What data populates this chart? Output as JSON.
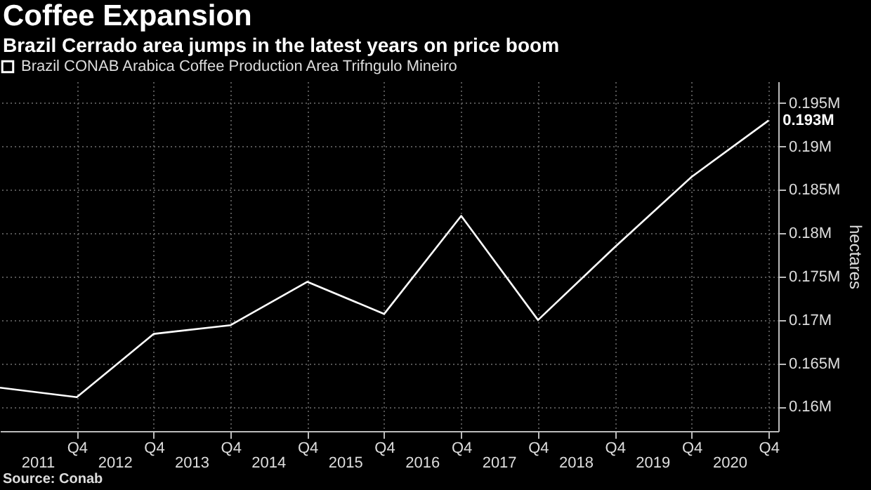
{
  "chart_data": {
    "type": "line",
    "title": "Coffee Expansion",
    "subtitle": "Brazil Cerrado area jumps in the latest years on price boom",
    "ylabel": "hectares",
    "x": [
      "2010-12-31",
      "2011-12-31",
      "2012-12-31",
      "2013-12-31",
      "2014-12-31",
      "2015-12-31",
      "2016-12-31",
      "2017-12-31",
      "2018-12-31",
      "2019-12-31",
      "2020-12-31"
    ],
    "series": [
      {
        "name": "Brazil CONAB Arabica Coffee Production Area Trifngulo Mineiro",
        "color": "#ffffff",
        "values": [
          162200,
          161100,
          168400,
          169400,
          174400,
          170700,
          182000,
          170000,
          178400,
          186500,
          193000
        ]
      }
    ],
    "xlim": [
      "2010-12-31",
      "2021-02-15"
    ],
    "xticks": [
      {
        "value": "2011-12-31",
        "label": "Q4"
      },
      {
        "value": "2012-12-31",
        "label": "Q4"
      },
      {
        "value": "2013-12-31",
        "label": "Q4"
      },
      {
        "value": "2014-12-31",
        "label": "Q4"
      },
      {
        "value": "2015-12-31",
        "label": "Q4"
      },
      {
        "value": "2016-12-31",
        "label": "Q4"
      },
      {
        "value": "2017-12-31",
        "label": "Q4"
      },
      {
        "value": "2018-12-31",
        "label": "Q4"
      },
      {
        "value": "2019-12-31",
        "label": "Q4"
      },
      {
        "value": "2020-12-31",
        "label": "Q4"
      }
    ],
    "ylim": [
      157200,
      197500
    ],
    "yticks": [
      {
        "value": 160000,
        "label": "0.16M"
      },
      {
        "value": 165000,
        "label": "0.165M"
      },
      {
        "value": 170000,
        "label": "0.17M"
      },
      {
        "value": 175000,
        "label": "0.175M"
      },
      {
        "value": 180000,
        "label": "0.18M"
      },
      {
        "value": 185000,
        "label": "0.185M"
      },
      {
        "value": 190000,
        "label": "0.19M"
      },
      {
        "value": 195000,
        "label": "0.195M"
      }
    ],
    "grid": true,
    "legend": "top left",
    "line_style": "solid",
    "annotations": [
      {
        "text": "0.193M",
        "x": "2020-12-31",
        "y": 193000
      },
      "2011",
      "2012",
      "2013",
      "2014",
      "2015",
      "2016",
      "2017",
      "2018",
      "2019",
      "2020",
      "Source: Conab"
    ]
  }
}
